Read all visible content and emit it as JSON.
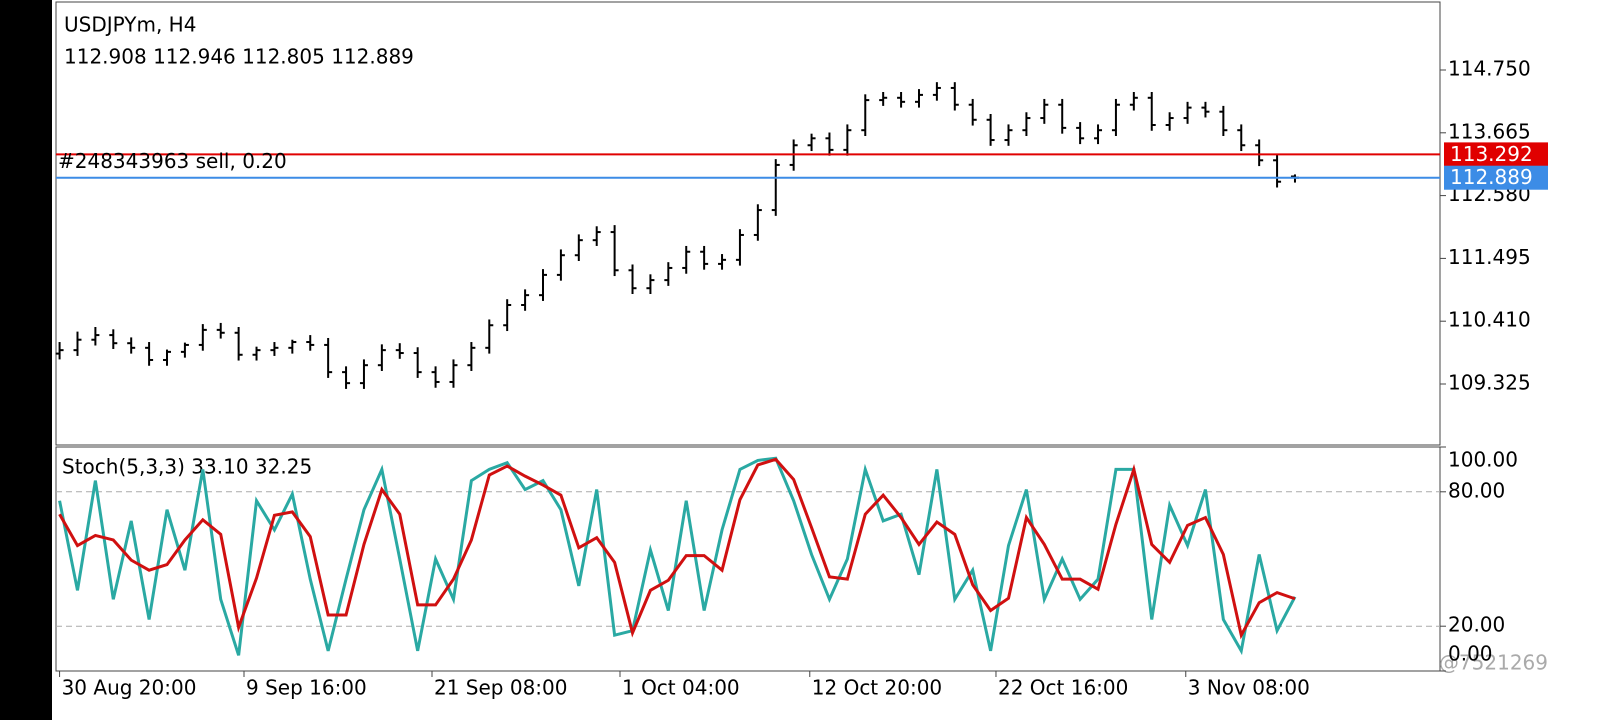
{
  "chart_data": [
    {
      "type": "ohlc",
      "title": "USDJPYm, H4",
      "subtitle": "112.908 112.946 112.805 112.889",
      "color": "#000000",
      "xlim": [
        -0.2,
        77.1
      ],
      "ylim": [
        108.271,
        115.925
      ],
      "yticks": [
        {
          "value": 114.75,
          "label": "114.750"
        },
        113.665,
        {
          "value": 112.58,
          "label": "112.580"
        },
        111.495,
        {
          "value": 110.41,
          "label": "110.410"
        },
        109.325
      ],
      "series": [
        {
          "open": [
            109.85,
            109.91,
            110.09,
            110.17,
            110.03,
            109.95,
            109.74,
            109.88,
            110.0,
            110.26,
            110.21,
            109.83,
            109.91,
            109.95,
            110.05,
            110.0,
            109.53,
            109.34,
            109.65,
            109.91,
            109.86,
            109.53,
            109.36,
            109.65,
            109.95,
            110.34,
            110.69,
            110.86,
            111.21,
            111.55,
            111.81,
            111.95,
            111.29,
            110.98,
            111.12,
            111.33,
            111.61,
            111.4,
            111.47,
            111.9,
            112.33,
            113.11,
            113.45,
            113.57,
            113.37,
            113.71,
            114.23,
            114.27,
            114.2,
            114.32,
            114.44,
            114.15,
            113.89,
            113.54,
            113.71,
            113.92,
            114.15,
            113.75,
            113.57,
            113.71,
            114.15,
            114.27,
            113.8,
            113.92,
            114.1,
            114.03,
            113.71,
            113.45,
            113.19,
            112.91
          ],
          "high": [
            110.05,
            110.23,
            110.31,
            110.27,
            110.13,
            110.05,
            109.92,
            110.04,
            110.36,
            110.38,
            110.31,
            109.97,
            110.05,
            110.09,
            110.17,
            110.12,
            109.63,
            109.75,
            110.01,
            110.03,
            109.96,
            109.63,
            109.75,
            110.05,
            110.44,
            110.79,
            110.96,
            111.31,
            111.65,
            111.91,
            112.05,
            112.07,
            111.39,
            111.22,
            111.43,
            111.71,
            111.71,
            111.57,
            112.0,
            112.43,
            113.21,
            113.55,
            113.65,
            113.67,
            113.81,
            114.33,
            114.37,
            114.37,
            114.42,
            114.54,
            114.54,
            114.25,
            113.99,
            113.81,
            114.02,
            114.25,
            114.25,
            113.85,
            113.81,
            114.25,
            114.37,
            114.37,
            114.02,
            114.2,
            114.2,
            114.13,
            113.81,
            113.55,
            113.29,
            112.946
          ],
          "low": [
            109.75,
            109.81,
            109.99,
            109.93,
            109.85,
            109.64,
            109.64,
            109.78,
            109.9,
            110.11,
            109.73,
            109.73,
            109.81,
            109.85,
            109.9,
            109.43,
            109.24,
            109.24,
            109.55,
            109.76,
            109.43,
            109.26,
            109.26,
            109.55,
            109.85,
            110.24,
            110.59,
            110.76,
            111.11,
            111.45,
            111.71,
            111.19,
            110.88,
            110.88,
            111.02,
            111.23,
            111.3,
            111.3,
            111.37,
            111.8,
            112.23,
            113.01,
            113.35,
            113.27,
            113.27,
            113.61,
            114.13,
            114.1,
            114.1,
            114.22,
            114.05,
            113.79,
            113.44,
            113.44,
            113.61,
            113.82,
            113.65,
            113.47,
            113.47,
            113.61,
            114.05,
            113.7,
            113.7,
            113.82,
            113.93,
            113.61,
            113.35,
            113.09,
            112.72,
            112.805
          ],
          "close": [
            109.91,
            110.09,
            110.17,
            110.03,
            109.95,
            109.74,
            109.88,
            110.0,
            110.26,
            110.21,
            109.83,
            109.91,
            109.95,
            110.05,
            110.0,
            109.53,
            109.34,
            109.65,
            109.91,
            109.86,
            109.53,
            109.36,
            109.65,
            109.95,
            110.34,
            110.69,
            110.86,
            111.21,
            111.55,
            111.81,
            111.95,
            111.29,
            110.98,
            111.12,
            111.33,
            111.61,
            111.4,
            111.47,
            111.9,
            112.33,
            113.11,
            113.45,
            113.57,
            113.37,
            113.71,
            114.23,
            114.27,
            114.2,
            114.32,
            114.44,
            114.15,
            113.89,
            113.54,
            113.71,
            113.92,
            114.15,
            113.75,
            113.57,
            113.71,
            114.15,
            114.27,
            113.8,
            113.92,
            114.1,
            114.03,
            113.71,
            113.45,
            113.19,
            112.82,
            112.889
          ]
        }
      ],
      "lines": [
        {
          "value": 113.292,
          "label": "#248343963 sell, 0.20",
          "color": "#e00000"
        },
        {
          "value": 112.889,
          "color": "#3c8ce6"
        }
      ]
    },
    {
      "type": "line",
      "title": "Stoch(5,3,3) 33.10 32.25",
      "watermark": "@7521269",
      "xlim": [
        -0.2,
        77.1
      ],
      "ylim": [
        0,
        100
      ],
      "yticks": [
        {
          "value": 100,
          "label": "100.00"
        },
        {
          "value": 80,
          "label": "80.00"
        },
        {
          "value": 20,
          "label": "20.00"
        },
        {
          "value": 0,
          "label": "0.00"
        }
      ],
      "levels": [
        80,
        20
      ],
      "xticks": [
        {
          "value": 0,
          "label": "30 Aug 20:00"
        },
        {
          "value": 10.3,
          "label": "9 Sep 16:00"
        },
        {
          "value": 20.8,
          "label": "21 Sep 08:00"
        },
        {
          "value": 31.3,
          "label": "1 Oct 04:00"
        },
        {
          "value": 41.9,
          "label": "12 Oct 20:00"
        },
        {
          "value": 52.3,
          "label": "22 Oct 16:00"
        },
        {
          "value": 62.9,
          "label": "3 Nov 08:00"
        }
      ],
      "series": [
        {
          "color": "#2aa9a3",
          "values": [
            76,
            36,
            85,
            32,
            67,
            23,
            72,
            45,
            90,
            32,
            7,
            76,
            63,
            79,
            41,
            9,
            41,
            72,
            90,
            50,
            9,
            50,
            32,
            85,
            90,
            93,
            81,
            85,
            72,
            38,
            81,
            16,
            18,
            54,
            27,
            76,
            27,
            63,
            90,
            94,
            95,
            76,
            52,
            32,
            50,
            90,
            67,
            70,
            43,
            90,
            32,
            45,
            9,
            56,
            81,
            32,
            50,
            32,
            41,
            90,
            90,
            23,
            74,
            56,
            81,
            23,
            9,
            52,
            18,
            33.1
          ]
        },
        {
          "color": "#d01010",
          "values": [
            70,
            56,
            60.5,
            58.5,
            49.5,
            45,
            47.5,
            58.5,
            67.5,
            61,
            19.5,
            41.5,
            69.5,
            71,
            60,
            25,
            25,
            56.5,
            81,
            70,
            29.5,
            29.5,
            41,
            58.5,
            87.5,
            91.5,
            87,
            83,
            78.5,
            55,
            59.5,
            48.5,
            17,
            36,
            40.5,
            51.5,
            51.5,
            45,
            76.5,
            92,
            94.5,
            85.5,
            64,
            42,
            41,
            70,
            78.5,
            68.5,
            56.5,
            66.5,
            61,
            38.5,
            27,
            32.5,
            68.5,
            56.5,
            41,
            41,
            36.5,
            65.5,
            90,
            56.5,
            48.5,
            65,
            68.5,
            52,
            16,
            30.5,
            35,
            32.25
          ]
        }
      ]
    }
  ]
}
